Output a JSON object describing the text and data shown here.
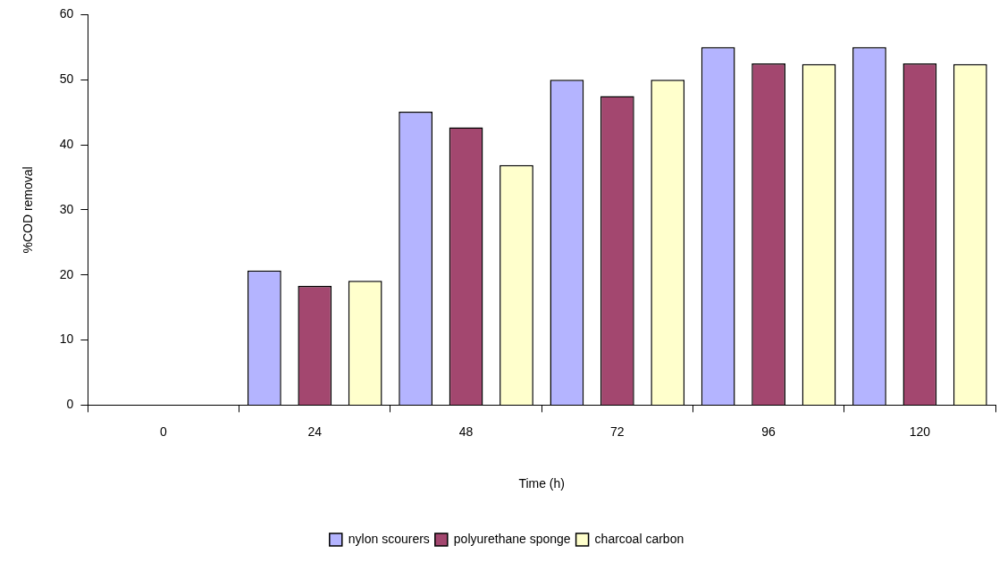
{
  "chart_data": {
    "type": "bar",
    "xlabel": "Time (h)",
    "ylabel": "%COD removal",
    "categories": [
      "0",
      "24",
      "48",
      "72",
      "96",
      "120"
    ],
    "series": [
      {
        "name": "nylon scourers",
        "color": "#b4b4ff",
        "values": [
          0,
          20.7,
          45.1,
          50.0,
          55.0,
          55.0
        ]
      },
      {
        "name": "polyurethane sponge",
        "color": "#a3476f",
        "values": [
          0,
          18.3,
          42.7,
          47.5,
          52.5,
          52.5
        ]
      },
      {
        "name": "charcoal carbon",
        "color": "#ffffcc",
        "values": [
          0,
          19.1,
          36.9,
          50.0,
          52.4,
          52.4
        ]
      }
    ],
    "ylim": [
      0,
      60
    ],
    "yticks": [
      0,
      10,
      20,
      30,
      40,
      50,
      60
    ],
    "grid": false,
    "legend": "bottom"
  }
}
